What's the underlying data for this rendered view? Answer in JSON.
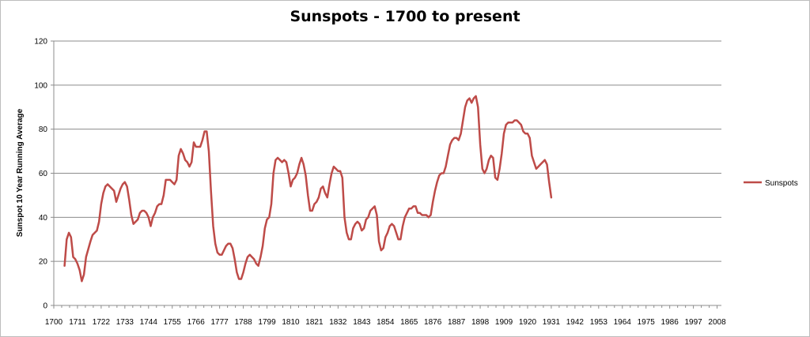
{
  "chart_data": {
    "type": "line",
    "title": "Sunspots - 1700 to present",
    "xlabel": "",
    "ylabel": "Sunspot 10 Year Running Average",
    "xlim": [
      1700,
      2010
    ],
    "ylim": [
      0,
      120
    ],
    "y_ticks": [
      0,
      20,
      40,
      60,
      80,
      100,
      120
    ],
    "x_ticks": [
      1700,
      1711,
      1722,
      1733,
      1744,
      1755,
      1766,
      1777,
      1788,
      1799,
      1810,
      1821,
      1832,
      1843,
      1854,
      1865,
      1876,
      1887,
      1898,
      1909,
      1920,
      1931,
      1942,
      1953,
      1964,
      1975,
      1986,
      1997,
      2008
    ],
    "grid": "horizontal",
    "legend_position": "right",
    "series": [
      {
        "name": "Sunspots",
        "color": "#be4b48",
        "points": [
          [
            1705,
            18
          ],
          [
            1706,
            30
          ],
          [
            1707,
            33
          ],
          [
            1708,
            31
          ],
          [
            1709,
            22
          ],
          [
            1710,
            21
          ],
          [
            1711,
            19
          ],
          [
            1712,
            16
          ],
          [
            1713,
            11
          ],
          [
            1714,
            14
          ],
          [
            1715,
            22
          ],
          [
            1717,
            29
          ],
          [
            1718,
            32
          ],
          [
            1720,
            34
          ],
          [
            1721,
            38
          ],
          [
            1722,
            46
          ],
          [
            1723,
            51
          ],
          [
            1724,
            54
          ],
          [
            1725,
            55
          ],
          [
            1726,
            54
          ],
          [
            1728,
            52
          ],
          [
            1729,
            47
          ],
          [
            1730,
            50
          ],
          [
            1731,
            53
          ],
          [
            1732,
            55
          ],
          [
            1733,
            56
          ],
          [
            1734,
            54
          ],
          [
            1735,
            48
          ],
          [
            1736,
            41
          ],
          [
            1737,
            37
          ],
          [
            1738,
            38
          ],
          [
            1739,
            39
          ],
          [
            1740,
            42
          ],
          [
            1741,
            43
          ],
          [
            1742,
            43
          ],
          [
            1743,
            42
          ],
          [
            1744,
            40
          ],
          [
            1745,
            36
          ],
          [
            1746,
            40
          ],
          [
            1747,
            42
          ],
          [
            1748,
            45
          ],
          [
            1749,
            46
          ],
          [
            1750,
            46
          ],
          [
            1751,
            50
          ],
          [
            1752,
            57
          ],
          [
            1753,
            57
          ],
          [
            1754,
            57
          ],
          [
            1755,
            56
          ],
          [
            1756,
            55
          ],
          [
            1757,
            57
          ],
          [
            1758,
            68
          ],
          [
            1759,
            71
          ],
          [
            1760,
            69
          ],
          [
            1761,
            66
          ],
          [
            1762,
            65
          ],
          [
            1763,
            63
          ],
          [
            1764,
            65
          ],
          [
            1765,
            74
          ],
          [
            1766,
            72
          ],
          [
            1767,
            72
          ],
          [
            1768,
            72
          ],
          [
            1769,
            75
          ],
          [
            1770,
            79
          ],
          [
            1771,
            79
          ],
          [
            1772,
            70
          ],
          [
            1773,
            52
          ],
          [
            1774,
            36
          ],
          [
            1775,
            28
          ],
          [
            1776,
            24
          ],
          [
            1777,
            23
          ],
          [
            1778,
            23
          ],
          [
            1779,
            25
          ],
          [
            1780,
            27
          ],
          [
            1781,
            28
          ],
          [
            1782,
            28
          ],
          [
            1783,
            26
          ],
          [
            1784,
            21
          ],
          [
            1785,
            15
          ],
          [
            1786,
            12
          ],
          [
            1787,
            12
          ],
          [
            1788,
            15
          ],
          [
            1789,
            19
          ],
          [
            1790,
            22
          ],
          [
            1791,
            23
          ],
          [
            1792,
            22
          ],
          [
            1793,
            21
          ],
          [
            1794,
            19
          ],
          [
            1795,
            18
          ],
          [
            1796,
            22
          ],
          [
            1797,
            27
          ],
          [
            1798,
            35
          ],
          [
            1799,
            39
          ],
          [
            1800,
            40
          ],
          [
            1801,
            46
          ],
          [
            1802,
            60
          ],
          [
            1803,
            66
          ],
          [
            1804,
            67
          ],
          [
            1805,
            66
          ],
          [
            1806,
            65
          ],
          [
            1807,
            66
          ],
          [
            1808,
            65
          ],
          [
            1809,
            60
          ],
          [
            1810,
            54
          ],
          [
            1811,
            57
          ],
          [
            1812,
            58
          ],
          [
            1813,
            60
          ],
          [
            1814,
            64
          ],
          [
            1815,
            67
          ],
          [
            1816,
            64
          ],
          [
            1817,
            59
          ],
          [
            1818,
            50
          ],
          [
            1819,
            43
          ],
          [
            1820,
            43
          ],
          [
            1821,
            46
          ],
          [
            1822,
            47
          ],
          [
            1823,
            49
          ],
          [
            1824,
            53
          ],
          [
            1825,
            54
          ],
          [
            1826,
            51
          ],
          [
            1827,
            49
          ],
          [
            1828,
            55
          ],
          [
            1829,
            60
          ],
          [
            1830,
            63
          ],
          [
            1831,
            62
          ],
          [
            1832,
            61
          ],
          [
            1833,
            61
          ],
          [
            1834,
            58
          ],
          [
            1835,
            40
          ],
          [
            1836,
            33
          ],
          [
            1837,
            30
          ],
          [
            1838,
            30
          ],
          [
            1839,
            35
          ],
          [
            1840,
            37
          ],
          [
            1841,
            38
          ],
          [
            1842,
            37
          ],
          [
            1843,
            34
          ],
          [
            1844,
            35
          ],
          [
            1845,
            39
          ],
          [
            1846,
            40
          ],
          [
            1847,
            43
          ],
          [
            1848,
            44
          ],
          [
            1849,
            45
          ],
          [
            1850,
            41
          ],
          [
            1851,
            29
          ],
          [
            1852,
            25
          ],
          [
            1853,
            26
          ],
          [
            1854,
            31
          ],
          [
            1855,
            33
          ],
          [
            1856,
            36
          ],
          [
            1857,
            37
          ],
          [
            1858,
            36
          ],
          [
            1859,
            33
          ],
          [
            1860,
            30
          ],
          [
            1861,
            30
          ],
          [
            1862,
            36
          ],
          [
            1863,
            40
          ],
          [
            1864,
            42
          ],
          [
            1865,
            44
          ],
          [
            1866,
            44
          ],
          [
            1867,
            45
          ],
          [
            1868,
            45
          ],
          [
            1869,
            42
          ],
          [
            1870,
            42
          ],
          [
            1871,
            41
          ],
          [
            1872,
            41
          ],
          [
            1873,
            41
          ],
          [
            1874,
            40
          ],
          [
            1875,
            41
          ],
          [
            1876,
            47
          ],
          [
            1877,
            52
          ],
          [
            1878,
            56
          ],
          [
            1879,
            59
          ],
          [
            1880,
            60
          ],
          [
            1881,
            60
          ],
          [
            1882,
            63
          ],
          [
            1883,
            68
          ],
          [
            1884,
            73
          ],
          [
            1885,
            75
          ],
          [
            1886,
            76
          ],
          [
            1887,
            76
          ],
          [
            1888,
            75
          ],
          [
            1889,
            78
          ],
          [
            1890,
            84
          ],
          [
            1891,
            90
          ],
          [
            1892,
            93
          ],
          [
            1893,
            94
          ],
          [
            1894,
            92
          ],
          [
            1895,
            94
          ],
          [
            1896,
            95
          ],
          [
            1897,
            90
          ],
          [
            1898,
            73
          ],
          [
            1899,
            62
          ],
          [
            1900,
            60
          ],
          [
            1901,
            62
          ],
          [
            1902,
            66
          ],
          [
            1903,
            68
          ],
          [
            1904,
            67
          ],
          [
            1905,
            58
          ],
          [
            1906,
            57
          ],
          [
            1907,
            62
          ],
          [
            1908,
            69
          ],
          [
            1909,
            78
          ],
          [
            1910,
            82
          ],
          [
            1911,
            83
          ],
          [
            1912,
            83
          ],
          [
            1913,
            83
          ],
          [
            1914,
            84
          ],
          [
            1915,
            84
          ],
          [
            1916,
            83
          ],
          [
            1917,
            82
          ],
          [
            1918,
            79
          ],
          [
            1919,
            78
          ],
          [
            1920,
            78
          ],
          [
            1921,
            76
          ],
          [
            1922,
            68
          ],
          [
            1923,
            65
          ],
          [
            1924,
            62
          ],
          [
            1925,
            63
          ],
          [
            1926,
            64
          ],
          [
            1927,
            65
          ],
          [
            1928,
            66
          ],
          [
            1929,
            64
          ],
          [
            1930,
            56
          ],
          [
            1931,
            49
          ]
        ]
      }
    ]
  }
}
